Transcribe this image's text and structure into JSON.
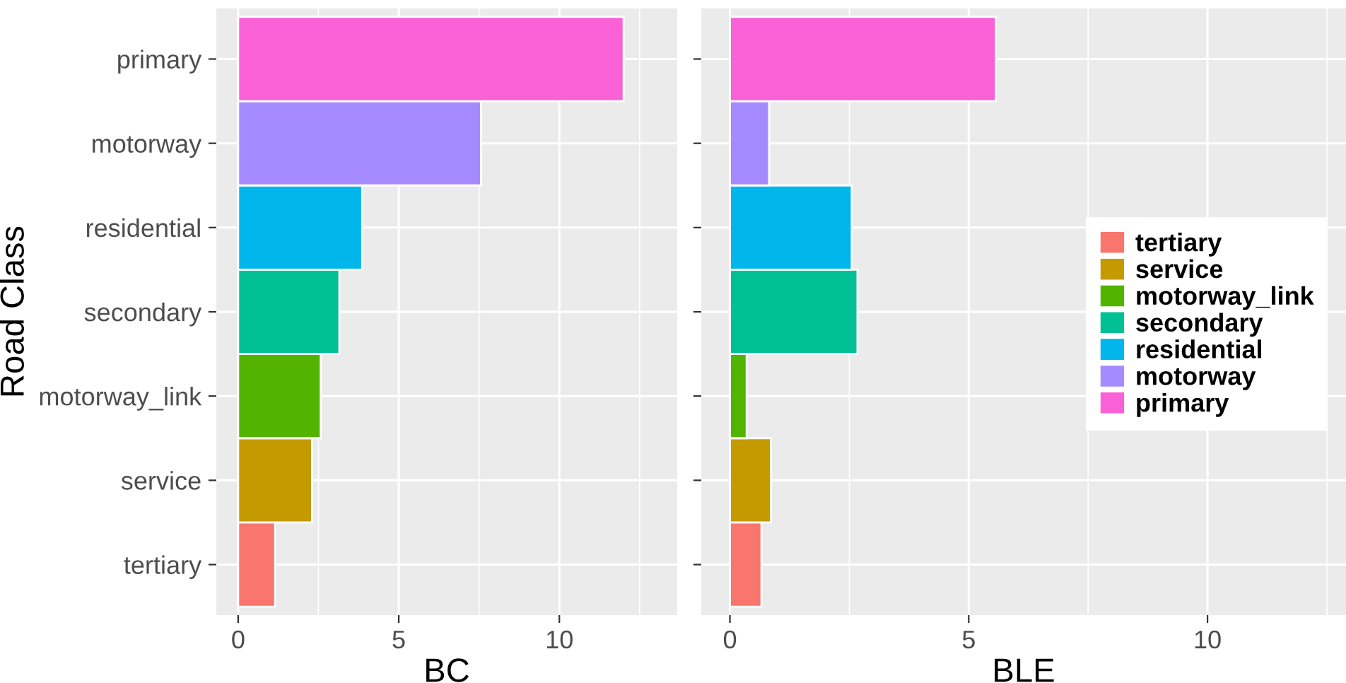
{
  "chart_data": [
    {
      "type": "bar",
      "orientation": "horizontal",
      "ylabel": "Road Class",
      "xlabel": "BC",
      "categories": [
        "primary",
        "motorway",
        "residential",
        "secondary",
        "motorway_link",
        "service",
        "tertiary"
      ],
      "series": [
        {
          "color": "#f8766d",
          "values": [
            null,
            null,
            null,
            null,
            null,
            null,
            1.15
          ]
        },
        {
          "color": "#c49a00",
          "values": [
            null,
            null,
            null,
            null,
            null,
            2.3,
            null
          ]
        },
        {
          "color": "#53b400",
          "values": [
            null,
            null,
            null,
            null,
            2.57,
            null,
            null
          ]
        },
        {
          "color": "#00c094",
          "values": [
            null,
            null,
            null,
            3.15,
            null,
            null,
            null
          ]
        },
        {
          "color": "#00b6eb",
          "values": [
            null,
            null,
            3.86,
            null,
            null,
            null,
            null
          ]
        },
        {
          "color": "#a58aff",
          "values": [
            null,
            7.56,
            null,
            null,
            null,
            null,
            null
          ]
        },
        {
          "color": "#fb61d7",
          "values": [
            12.0,
            null,
            null,
            null,
            null,
            null,
            null
          ]
        }
      ],
      "xlim": [
        -0.68,
        13.67
      ],
      "xticks": [
        0,
        5,
        10
      ],
      "grid": true,
      "legend": false
    },
    {
      "type": "bar",
      "orientation": "horizontal",
      "xlabel": "BLE",
      "categories": [
        null,
        null,
        null,
        null,
        null,
        null,
        null
      ],
      "series": [
        {
          "name": "tertiary",
          "color": "#f8766d",
          "values": [
            null,
            null,
            null,
            null,
            null,
            null,
            0.66
          ]
        },
        {
          "name": "service",
          "color": "#c49a00",
          "values": [
            null,
            null,
            null,
            null,
            null,
            0.86,
            null
          ]
        },
        {
          "name": "motorway_link",
          "color": "#53b400",
          "values": [
            null,
            null,
            null,
            null,
            0.35,
            null,
            null
          ]
        },
        {
          "name": "secondary",
          "color": "#00c094",
          "values": [
            null,
            null,
            null,
            2.67,
            null,
            null,
            null
          ]
        },
        {
          "name": "residential",
          "color": "#00b6eb",
          "values": [
            null,
            null,
            2.55,
            null,
            null,
            null,
            null
          ]
        },
        {
          "name": "motorway",
          "color": "#a58aff",
          "values": [
            null,
            0.82,
            null,
            null,
            null,
            null,
            null
          ]
        },
        {
          "name": "primary",
          "color": "#fb61d7",
          "values": [
            5.57,
            null,
            null,
            null,
            null,
            null,
            null
          ]
        }
      ],
      "xlim": [
        -0.6,
        12.9
      ],
      "xticks": [
        0,
        5,
        10
      ],
      "grid": true,
      "legend": "right",
      "tick_labels": "x"
    }
  ]
}
